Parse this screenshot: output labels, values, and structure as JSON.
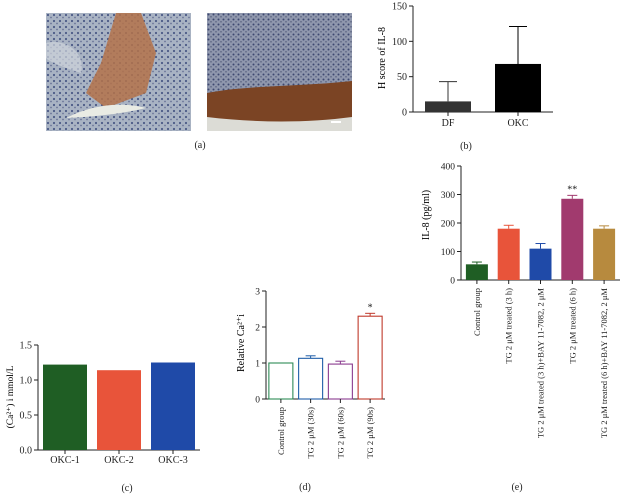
{
  "panel_labels": {
    "a": "(a)",
    "b": "(b)",
    "c": "(c)",
    "d": "(d)",
    "e": "(e)"
  },
  "colors": {
    "dark_bar": "#333333",
    "black_bar": "#000000",
    "green": "#1f5e24",
    "orange": "#e8543a",
    "blue": "#1f4aa8",
    "magenta": "#a13a6e",
    "tan": "#b78a3e",
    "red_outline": "#c0392b",
    "teal_outline": "#3b7f8f"
  },
  "chart_data": [
    {
      "id": "b",
      "type": "bar",
      "categories": [
        "DF",
        "OKC"
      ],
      "values": [
        15,
        68
      ],
      "errors": [
        28,
        53
      ],
      "ylabel": "H score of IL-8",
      "ylim": [
        0,
        150
      ],
      "yticks": [
        "0",
        "50",
        "100",
        "150"
      ],
      "bar_colors": [
        "#333333",
        "#000000"
      ]
    },
    {
      "id": "c",
      "type": "bar",
      "categories": [
        "OKC-1",
        "OKC-2",
        "OKC-3"
      ],
      "values": [
        1.22,
        1.14,
        1.25
      ],
      "ylabel": "(Ca²⁺) i mmol/L",
      "ylim": [
        0,
        1.5
      ],
      "yticks": [
        "0.0",
        "0.5",
        "1.0",
        "1.5"
      ],
      "bar_colors": [
        "#1f5e24",
        "#e8543a",
        "#1f4aa8"
      ]
    },
    {
      "id": "d",
      "type": "bar",
      "categories": [
        "Control group",
        "TG 2 μM (30s)",
        "TG 2 μM (60s)",
        "TG 2 μM (90s)"
      ],
      "values": [
        1.0,
        1.13,
        0.97,
        2.3
      ],
      "errors": [
        0,
        0.07,
        0.08,
        0.08
      ],
      "annotations": [
        "",
        "",
        "",
        "*"
      ],
      "ylabel": "Relative Ca²⁺i",
      "ylim": [
        0,
        3
      ],
      "yticks": [
        "0",
        "1",
        "2",
        "3"
      ],
      "bar_colors": [
        "#2e8b57",
        "#1f5ea8",
        "#8a3b8f",
        "#c0392b"
      ]
    },
    {
      "id": "e",
      "type": "bar",
      "categories": [
        "Control group",
        "TG 2 μM treated (3 h)",
        "TG 2 μM treated (3 h)+BAY 11-7082, 2 μM",
        "TG 2 μM treated (6 h)",
        "TG 2 μM treated (6 h)+BAY 11-7082, 2 μM"
      ],
      "values": [
        55,
        180,
        110,
        285,
        180
      ],
      "errors": [
        8,
        12,
        18,
        12,
        10
      ],
      "annotations": [
        "",
        "",
        "",
        "**",
        ""
      ],
      "ylabel": "IL-8 (pg/ml)",
      "ylim": [
        0,
        400
      ],
      "yticks": [
        "0",
        "100",
        "200",
        "300",
        "400"
      ],
      "bar_colors": [
        "#1f5e24",
        "#e8543a",
        "#1f4aa8",
        "#a13a6e",
        "#b78a3e"
      ]
    }
  ]
}
